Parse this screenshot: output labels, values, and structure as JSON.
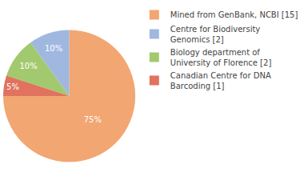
{
  "chart_data": {
    "type": "pie",
    "categories": [
      "Mined from GenBank, NCBI [15]",
      "Centre for Biodiversity Genomics [2]",
      "Biology department of University of Florence [2]",
      "Canadian Centre for DNA Barcoding [1]"
    ],
    "values": [
      75,
      10,
      10,
      5
    ],
    "value_labels": [
      "75%",
      "10%",
      "10%",
      "5%"
    ],
    "colors": [
      "#f2a672",
      "#a0b8e0",
      "#a3c96e",
      "#e0725e"
    ],
    "data_labels": true,
    "legend": "upper right"
  }
}
